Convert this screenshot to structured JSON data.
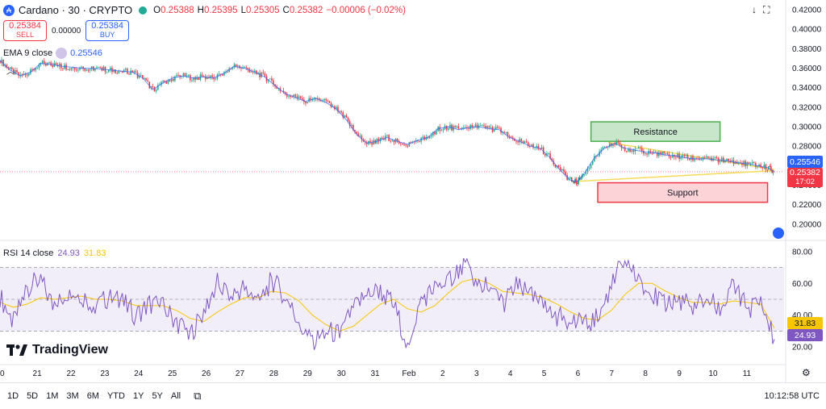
{
  "header": {
    "ticker_icon": "₳",
    "title": "Cardano · 30 · CRYPTO",
    "ohlc": [
      {
        "k": "O",
        "v": "0.25388"
      },
      {
        "k": "H",
        "v": "0.25395"
      },
      {
        "k": "L",
        "v": "0.25305"
      },
      {
        "k": "C",
        "v": "0.25382"
      }
    ],
    "change": "−0.00006 (−0.02%)",
    "live_color": "#22ab94"
  },
  "trade": {
    "sell_price": "0.25384",
    "sell_label": "SELL",
    "spread": "0.00000",
    "buy_price": "0.25384",
    "buy_label": "BUY"
  },
  "ema_legend": {
    "label": "EMA 9 close",
    "value": "0.25546"
  },
  "rsi_legend": {
    "label": "RSI 14 close",
    "value_rsi": "24.93",
    "value_ma": "31.83"
  },
  "brand": {
    "name": "TradingView"
  },
  "toolbar": {
    "timeframes": [
      "1D",
      "5D",
      "1M",
      "3M",
      "6M",
      "YTD",
      "1Y",
      "5Y",
      "All"
    ],
    "clock": "10:12:58 UTC"
  },
  "price_tags": {
    "ema": "0.25546",
    "last": "0.25382",
    "countdown": "17:02",
    "rsi_ma": "31.83",
    "rsi": "24.93"
  },
  "colors": {
    "candle_up": "#22ab94",
    "candle_down": "#f23645",
    "ema": "#2962ff",
    "rsi": "#7e57c2",
    "rsi_ma": "#f7c600",
    "resistance_fill": "#c8e6c9",
    "support_fill": "#fcd4d8",
    "trendline": "#f7dc5a"
  },
  "chart_data": [
    {
      "type": "line",
      "name": "price",
      "x_ticks": [
        "0",
        "21",
        "22",
        "23",
        "24",
        "25",
        "26",
        "27",
        "28",
        "29",
        "30",
        "31",
        "Feb",
        "2",
        "3",
        "4",
        "5",
        "6",
        "7",
        "8",
        "9",
        "10",
        "11"
      ],
      "y_ticks": [
        "0.42000",
        "0.40000",
        "0.38000",
        "0.36000",
        "0.34000",
        "0.32000",
        "0.30000",
        "0.28000",
        "0.26000",
        "0.24000",
        "0.22000",
        "0.20000"
      ],
      "ylim": [
        0.19,
        0.425
      ],
      "x": [
        0,
        0.3,
        0.6,
        0.9,
        1.2,
        1.5,
        1.8,
        2.1,
        2.4,
        2.7,
        3.0,
        3.3,
        3.6,
        3.9,
        4.2,
        4.5,
        4.8,
        5.1,
        5.4,
        5.7,
        6.0,
        6.3,
        6.6,
        6.9,
        7.2,
        7.5,
        7.8,
        8.1,
        8.4,
        8.7,
        9.0,
        9.3,
        9.6,
        9.9,
        10.2,
        10.5,
        10.8,
        11.1,
        11.4,
        11.7,
        12.0,
        12.3,
        12.6,
        12.9,
        13.2,
        13.5,
        13.8,
        14.1,
        14.4,
        14.7,
        15.0,
        15.3,
        15.6,
        15.9,
        16.2,
        16.5,
        16.8,
        17.0,
        17.2,
        17.5,
        17.8,
        18.1,
        18.4,
        18.7,
        19.0,
        19.3,
        19.6,
        19.9,
        20.2,
        20.5,
        20.8,
        21.1,
        21.4,
        21.7,
        22.0,
        22.3,
        22.6,
        22.8
      ],
      "y": [
        0.368,
        0.358,
        0.352,
        0.356,
        0.365,
        0.364,
        0.362,
        0.361,
        0.36,
        0.36,
        0.359,
        0.358,
        0.357,
        0.356,
        0.35,
        0.338,
        0.345,
        0.35,
        0.352,
        0.35,
        0.351,
        0.35,
        0.355,
        0.362,
        0.36,
        0.356,
        0.351,
        0.342,
        0.334,
        0.33,
        0.326,
        0.329,
        0.325,
        0.318,
        0.307,
        0.292,
        0.283,
        0.285,
        0.289,
        0.285,
        0.282,
        0.286,
        0.289,
        0.298,
        0.3,
        0.297,
        0.299,
        0.3,
        0.298,
        0.297,
        0.289,
        0.285,
        0.28,
        0.278,
        0.268,
        0.255,
        0.245,
        0.244,
        0.252,
        0.268,
        0.278,
        0.283,
        0.278,
        0.276,
        0.274,
        0.273,
        0.271,
        0.27,
        0.268,
        0.267,
        0.267,
        0.266,
        0.265,
        0.263,
        0.262,
        0.26,
        0.258,
        0.2538
      ]
    },
    {
      "type": "line",
      "name": "RSI",
      "y_ticks": [
        "80.00",
        "60.00",
        "40.00",
        "20.00"
      ],
      "ylim": [
        15,
        85
      ],
      "bands": [
        30,
        50,
        70
      ],
      "x": [
        0,
        0.4,
        0.8,
        1.2,
        1.6,
        2.0,
        2.4,
        2.8,
        3.2,
        3.6,
        4.0,
        4.4,
        4.8,
        5.2,
        5.6,
        6.0,
        6.4,
        6.8,
        7.2,
        7.6,
        8.0,
        8.4,
        8.8,
        9.2,
        9.6,
        10.0,
        10.4,
        10.8,
        11.2,
        11.6,
        12.0,
        12.4,
        12.8,
        13.2,
        13.6,
        14.0,
        14.4,
        14.8,
        15.2,
        15.6,
        16.0,
        16.4,
        16.8,
        17.2,
        17.6,
        18.0,
        18.4,
        18.8,
        19.2,
        19.6,
        20.0,
        20.4,
        20.8,
        21.2,
        21.6,
        22.0,
        22.4,
        22.8
      ],
      "y": [
        52,
        35,
        58,
        62,
        44,
        55,
        52,
        46,
        51,
        48,
        40,
        47,
        45,
        36,
        28,
        42,
        60,
        52,
        58,
        47,
        62,
        52,
        35,
        22,
        30,
        28,
        44,
        53,
        55,
        46,
        22,
        50,
        56,
        62,
        72,
        63,
        56,
        47,
        58,
        52,
        45,
        39,
        37,
        33,
        38,
        58,
        76,
        60,
        52,
        48,
        50,
        45,
        52,
        42,
        58,
        44,
        48,
        24.93
      ],
      "ma": [
        48,
        45,
        47,
        51,
        50,
        51,
        52,
        50,
        50,
        49,
        46,
        46,
        46,
        43,
        38,
        36,
        42,
        47,
        51,
        51,
        55,
        54,
        49,
        40,
        34,
        30,
        33,
        40,
        47,
        50,
        44,
        42,
        46,
        54,
        61,
        63,
        60,
        55,
        54,
        53,
        51,
        47,
        42,
        38,
        37,
        43,
        53,
        60,
        60,
        55,
        51,
        48,
        48,
        47,
        49,
        48,
        47,
        31.83
      ]
    }
  ],
  "annotations": {
    "resistance": "Resistance",
    "support": "Support"
  }
}
